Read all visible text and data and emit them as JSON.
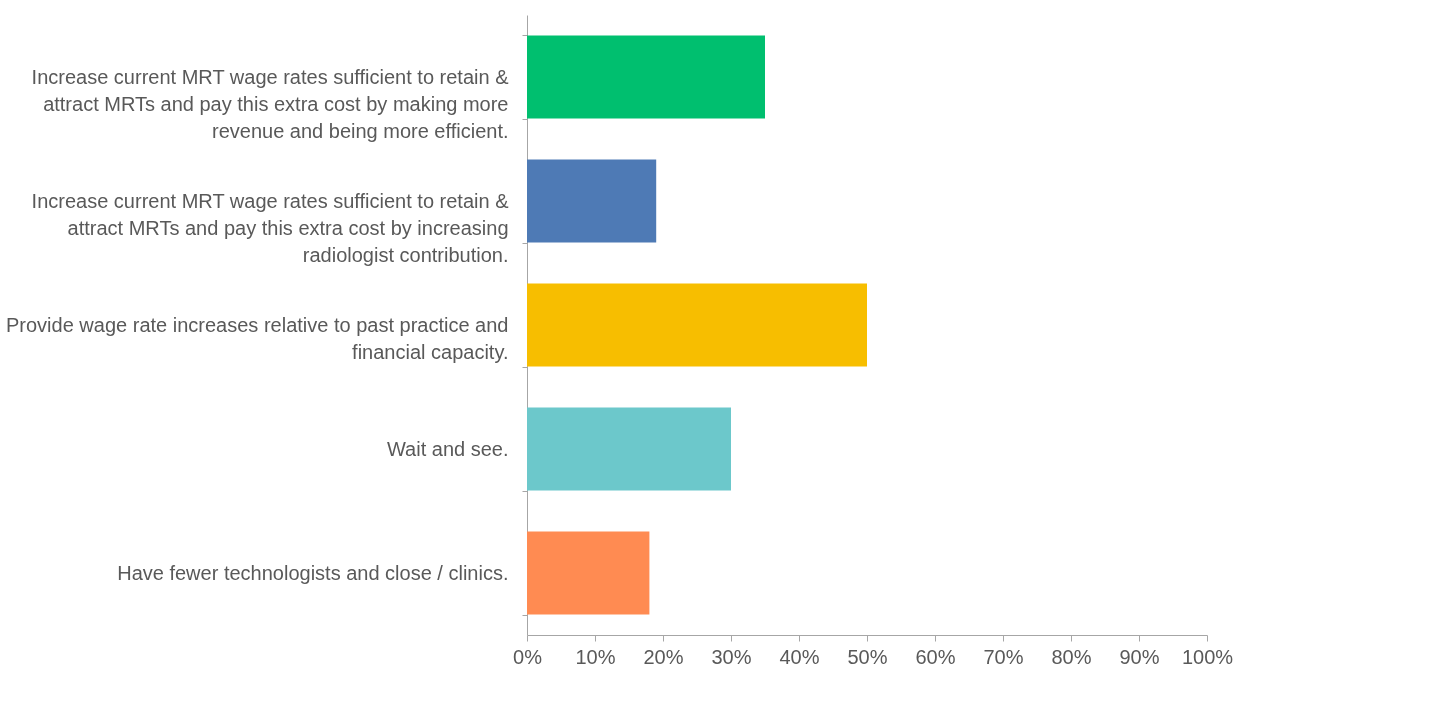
{
  "chart_data": {
    "type": "bar",
    "orientation": "horizontal",
    "categories": [
      "Increase current MRT wage rates sufficient to retain & attract MRTs and pay this extra cost by making more revenue and being more efficient.",
      "Increase current MRT wage rates sufficient to retain & attract MRTs and pay this extra cost by increasing radiologist contribution.",
      "Provide wage rate increases relative to past practice and financial capacity.",
      "Wait and see.",
      "Have fewer technologists and close / clinics."
    ],
    "values": [
      35,
      19,
      50,
      30,
      18
    ],
    "colors": [
      "#00bf6f",
      "#4e7ab5",
      "#f7be00",
      "#6cc8cb",
      "#ff8b52"
    ],
    "xlim": [
      0,
      100
    ],
    "xticks": [
      {
        "value": 0,
        "label": "0%"
      },
      {
        "value": 10,
        "label": "10%"
      },
      {
        "value": 20,
        "label": "20%"
      },
      {
        "value": 30,
        "label": "30%"
      },
      {
        "value": 40,
        "label": "40%"
      },
      {
        "value": 50,
        "label": "50%"
      },
      {
        "value": 60,
        "label": "60%"
      },
      {
        "value": 70,
        "label": "70%"
      },
      {
        "value": 80,
        "label": "80%"
      },
      {
        "value": 90,
        "label": "90%"
      },
      {
        "value": 100,
        "label": "100%"
      }
    ],
    "grid": false
  }
}
